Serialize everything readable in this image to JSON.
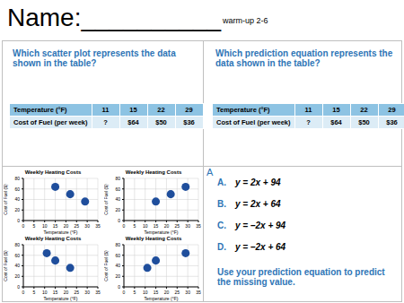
{
  "header": {
    "title": "Name:__________",
    "subtitle": "warm-up 2-6"
  },
  "panels": [
    {
      "question": "Which scatter plot represents the data shown in the table?",
      "table": {
        "rows": [
          [
            "Temperature (°F)",
            "11",
            "15",
            "22",
            "29"
          ],
          [
            "Cost of Fuel (per week)",
            "?",
            "$64",
            "$50",
            "$36"
          ]
        ]
      }
    },
    {
      "question": "Which prediction equation represents the data shown in the table?",
      "table": {
        "rows": [
          [
            "Temperature (°F)",
            "11",
            "15",
            "22",
            "29"
          ],
          [
            "Cost of Fuel (per week)",
            "?",
            "$64",
            "$50",
            "$36"
          ]
        ]
      }
    }
  ],
  "stray_label": "A",
  "choices": [
    {
      "letter": "A.",
      "equation": "y = 2x + 94"
    },
    {
      "letter": "B.",
      "equation": "y = 2x + 64"
    },
    {
      "letter": "C.",
      "equation": "y = –2x + 94"
    },
    {
      "letter": "D.",
      "equation": "y = –2x + 64"
    }
  ],
  "instruction": "Use your prediction equation to predict the missing value.",
  "chart_data": [
    {
      "type": "scatter",
      "title": "Weekly Heating Costs",
      "x_label": "Temperature (°F)",
      "y_label": "Cost of Fuel ($)",
      "x": [
        15,
        22,
        29
      ],
      "values": [
        64,
        50,
        36
      ],
      "xlim": [
        0,
        35
      ],
      "ylim": [
        0,
        80
      ],
      "xticks": [
        0,
        5,
        10,
        15,
        20,
        25,
        30,
        35
      ],
      "yticks": [
        0,
        20,
        40,
        60,
        80
      ],
      "grid": true,
      "color": "#1f4e9c",
      "marker": "circle"
    },
    {
      "type": "scatter",
      "title": "Weekly Heating Costs",
      "x_label": "Temperature (°F)",
      "y_label": "Cost of Fuel ($)",
      "x": [
        15,
        22,
        29
      ],
      "values": [
        36,
        50,
        64
      ],
      "xlim": [
        0,
        35
      ],
      "ylim": [
        0,
        80
      ],
      "xticks": [
        0,
        5,
        10,
        15,
        20,
        25,
        30,
        35
      ],
      "yticks": [
        0,
        20,
        40,
        60,
        80
      ],
      "grid": true,
      "color": "#1f4e9c",
      "marker": "circle"
    },
    {
      "type": "scatter",
      "title": "Weekly Heating Costs",
      "x_label": "Temperature (°F)",
      "y_label": "Cost of Fuel ($)",
      "x": [
        11,
        15,
        22
      ],
      "values": [
        64,
        50,
        36
      ],
      "xlim": [
        0,
        35
      ],
      "ylim": [
        0,
        80
      ],
      "xticks": [
        0,
        5,
        10,
        15,
        20,
        25,
        30,
        35
      ],
      "yticks": [
        0,
        20,
        40,
        60,
        80
      ],
      "grid": true,
      "color": "#1f4e9c",
      "marker": "circle"
    },
    {
      "type": "scatter",
      "title": "Weekly Heating Costs",
      "x_label": "Temperature (°F)",
      "y_label": "Cost of Fuel ($)",
      "x": [
        11,
        15,
        29
      ],
      "values": [
        36,
        50,
        64
      ],
      "xlim": [
        0,
        35
      ],
      "ylim": [
        0,
        80
      ],
      "xticks": [
        0,
        5,
        10,
        15,
        20,
        25,
        30,
        35
      ],
      "yticks": [
        0,
        20,
        40,
        60,
        80
      ],
      "grid": true,
      "color": "#1f4e9c",
      "marker": "circle"
    }
  ]
}
